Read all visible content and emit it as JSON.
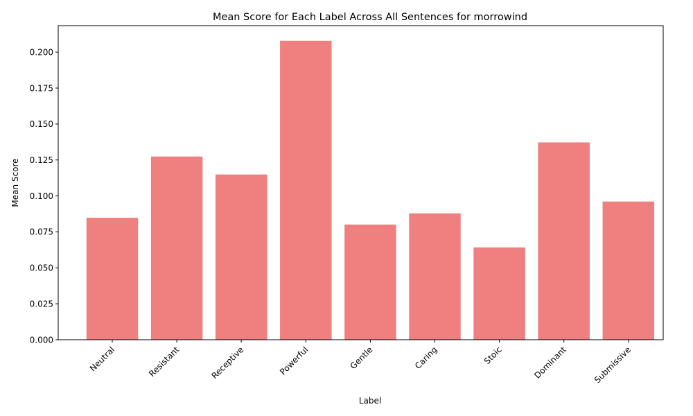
{
  "chart_data": {
    "type": "bar",
    "title": "Mean Score for Each Label Across All Sentences for morrowind",
    "xlabel": "Label",
    "ylabel": "Mean Score",
    "categories": [
      "Neutral",
      "Resistant",
      "Receptive",
      "Powerful",
      "Gentle",
      "Caring",
      "Stoic",
      "Dominant",
      "Submissive"
    ],
    "values": [
      0.0848,
      0.1274,
      0.1149,
      0.2079,
      0.0801,
      0.0879,
      0.0642,
      0.1372,
      0.0961
    ],
    "ylim": [
      0,
      0.2184
    ],
    "yticks": [
      "0.000",
      "0.025",
      "0.050",
      "0.075",
      "0.100",
      "0.125",
      "0.150",
      "0.175",
      "0.200"
    ],
    "bar_color": "#f08080",
    "grid": false,
    "legend": "none"
  }
}
